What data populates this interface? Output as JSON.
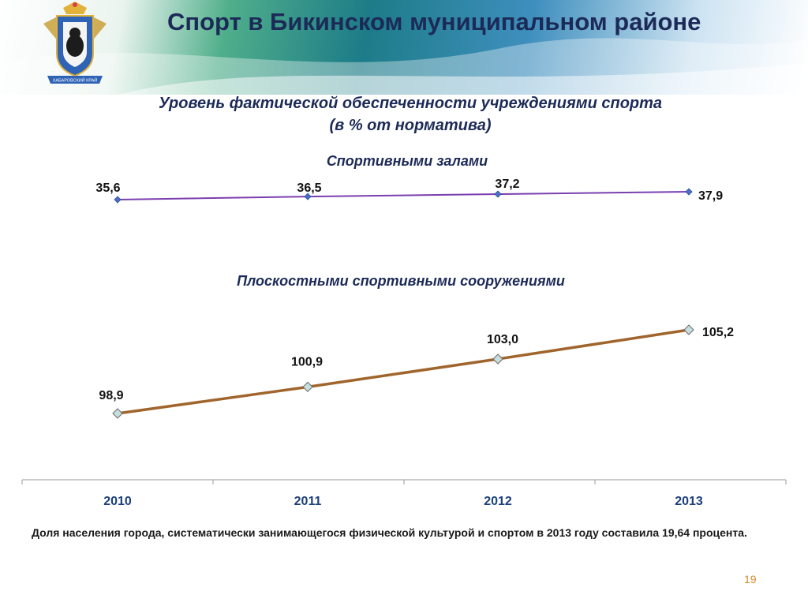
{
  "slide": {
    "title": "Спорт в Бикинском муниципальном районе",
    "subtitle_line1": "Уровень фактической обеспеченности учреждениями спорта",
    "subtitle_line2": "(в % от норматива)",
    "bottom_text": "Доля населения города, систематически занимающегося физической культурой и спортом в 2013 году составила 19,64 процента.",
    "page_number": "19",
    "emblem_ribbon": "ХАБАРОВСКИЙ КРАЙ"
  },
  "chart_data": [
    {
      "type": "line",
      "title": "Спортивными залами",
      "categories": [
        "2010",
        "2011",
        "2012",
        "2013"
      ],
      "series": [
        {
          "values": [
            35.6,
            36.5,
            37.2,
            37.9
          ]
        }
      ],
      "data_labels": [
        "35,6",
        "36,5",
        "37,2",
        "37,9"
      ],
      "color": "#7a3fb0",
      "marker_color": "#4a6fc8"
    },
    {
      "type": "line",
      "title": "Плоскостными спортивными сооружениями",
      "categories": [
        "2010",
        "2011",
        "2012",
        "2013"
      ],
      "series": [
        {
          "values": [
            98.9,
            100.9,
            103.0,
            105.2
          ]
        }
      ],
      "data_labels": [
        "98,9",
        "100,9",
        "103,0",
        "105,2"
      ],
      "color": "#a0652c",
      "marker_color": "#c6dedd"
    }
  ],
  "colors": {
    "title": "#1c2a57",
    "axis_labels": "#1c3f7a",
    "page_number": "#d98a2a"
  }
}
